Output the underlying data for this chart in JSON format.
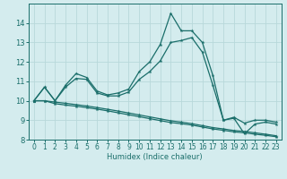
{
  "xlabel": "Humidex (Indice chaleur)",
  "background_color": "#d4ecee",
  "grid_color": "#b8d8da",
  "line_color": "#1a6e6a",
  "x_values": [
    0,
    1,
    2,
    3,
    4,
    5,
    6,
    7,
    8,
    9,
    10,
    11,
    12,
    13,
    14,
    15,
    16,
    17,
    18,
    19,
    20,
    21,
    22,
    23
  ],
  "line1": [
    10.0,
    10.7,
    10.0,
    10.8,
    11.4,
    11.2,
    10.5,
    10.3,
    10.4,
    10.6,
    11.5,
    12.0,
    12.9,
    14.5,
    13.6,
    13.6,
    13.0,
    11.3,
    9.0,
    9.1,
    8.3,
    8.8,
    8.9,
    8.8
  ],
  "line2": [
    10.0,
    10.7,
    10.0,
    10.7,
    11.15,
    11.1,
    10.4,
    10.25,
    10.25,
    10.45,
    11.1,
    11.5,
    12.05,
    13.0,
    13.1,
    13.25,
    12.5,
    10.8,
    9.0,
    9.15,
    8.85,
    9.0,
    9.0,
    8.9
  ],
  "line3": [
    10.0,
    10.0,
    9.85,
    9.78,
    9.72,
    9.65,
    9.57,
    9.48,
    9.38,
    9.28,
    9.18,
    9.08,
    8.98,
    8.88,
    8.82,
    8.75,
    8.65,
    8.55,
    8.48,
    8.4,
    8.35,
    8.28,
    8.22,
    8.15
  ],
  "line4": [
    10.0,
    10.0,
    9.93,
    9.87,
    9.8,
    9.73,
    9.65,
    9.56,
    9.47,
    9.37,
    9.27,
    9.17,
    9.07,
    8.97,
    8.9,
    8.82,
    8.72,
    8.62,
    8.55,
    8.47,
    8.42,
    8.35,
    8.28,
    8.2
  ],
  "ylim": [
    8,
    15
  ],
  "yticks": [
    8,
    9,
    10,
    11,
    12,
    13,
    14
  ],
  "xticks": [
    0,
    1,
    2,
    3,
    4,
    5,
    6,
    7,
    8,
    9,
    10,
    11,
    12,
    13,
    14,
    15,
    16,
    17,
    18,
    19,
    20,
    21,
    22,
    23
  ],
  "marker": "*",
  "markersize": 3,
  "linewidth": 0.9,
  "xlabel_fontsize": 6,
  "tick_fontsize": 5.5,
  "ytick_fontsize": 6
}
